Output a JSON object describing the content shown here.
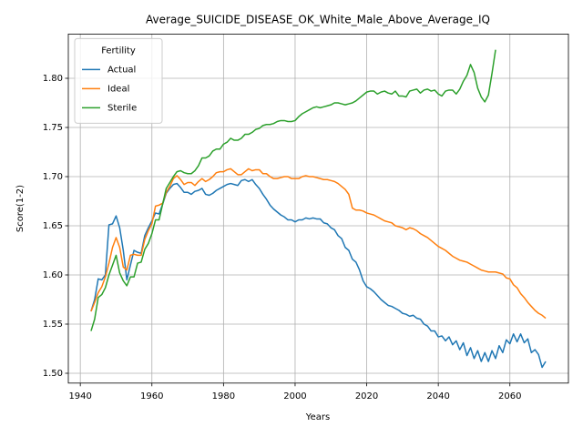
{
  "chart_data": {
    "type": "line",
    "title": "Average_SUICIDE_DISEASE_OK_White_Male_Above_Average_IQ",
    "x_label": "Years",
    "y_label": "Score(1-2)",
    "legend_title": "Fertility",
    "legend_position": "upper left",
    "grid": true,
    "xlim": [
      1936.65,
      2076.35
    ],
    "xticks": [
      1940,
      1960,
      1980,
      2000,
      2020,
      2040,
      2060
    ],
    "ylim": [
      1.49,
      1.845
    ],
    "yticks": [
      {
        "value": 1.5,
        "label": "1.50"
      },
      1.55,
      {
        "value": 1.6,
        "label": "1.60"
      },
      1.65,
      {
        "value": 1.7,
        "label": "1.70"
      },
      1.75,
      {
        "value": 1.8,
        "label": "1.80"
      }
    ],
    "x": [
      1943,
      1944,
      1945,
      1946,
      1947,
      1948,
      1949,
      1950,
      1951,
      1952,
      1953,
      1954,
      1955,
      1956,
      1957,
      1958,
      1959,
      1960,
      1961,
      1962,
      1963,
      1964,
      1965,
      1966,
      1967,
      1968,
      1969,
      1970,
      1971,
      1972,
      1973,
      1974,
      1975,
      1976,
      1977,
      1978,
      1979,
      1980,
      1981,
      1982,
      1983,
      1984,
      1985,
      1986,
      1987,
      1988,
      1989,
      1990,
      1991,
      1992,
      1993,
      1994,
      1995,
      1996,
      1997,
      1998,
      1999,
      2000,
      2001,
      2002,
      2003,
      2004,
      2005,
      2006,
      2007,
      2008,
      2009,
      2010,
      2011,
      2012,
      2013,
      2014,
      2015,
      2016,
      2017,
      2018,
      2019,
      2020,
      2021,
      2022,
      2023,
      2024,
      2025,
      2026,
      2027,
      2028,
      2029,
      2030,
      2031,
      2032,
      2033,
      2034,
      2035,
      2036,
      2037,
      2038,
      2039,
      2040,
      2041,
      2042,
      2043,
      2044,
      2045,
      2046,
      2047,
      2048,
      2049,
      2050,
      2051,
      2052,
      2053,
      2054,
      2055,
      2056,
      2057,
      2058,
      2059,
      2060,
      2061,
      2062,
      2063,
      2064,
      2065,
      2066,
      2067,
      2068,
      2069,
      2070
    ],
    "series": [
      {
        "name": "Actual",
        "color": "#1f77b4",
        "values": [
          1.563,
          1.575,
          1.596,
          1.595,
          1.6,
          1.651,
          1.652,
          1.66,
          1.648,
          1.625,
          1.595,
          1.61,
          1.625,
          1.623,
          1.622,
          1.64,
          1.648,
          1.655,
          1.663,
          1.662,
          1.672,
          1.683,
          1.688,
          1.692,
          1.693,
          1.689,
          1.684,
          1.684,
          1.682,
          1.685,
          1.686,
          1.688,
          1.682,
          1.681,
          1.683,
          1.686,
          1.688,
          1.69,
          1.692,
          1.693,
          1.692,
          1.691,
          1.696,
          1.697,
          1.695,
          1.697,
          1.692,
          1.688,
          1.682,
          1.677,
          1.671,
          1.667,
          1.664,
          1.661,
          1.659,
          1.656,
          1.656,
          1.654,
          1.656,
          1.656,
          1.658,
          1.657,
          1.658,
          1.657,
          1.657,
          1.653,
          1.652,
          1.648,
          1.646,
          1.64,
          1.637,
          1.628,
          1.625,
          1.616,
          1.613,
          1.605,
          1.594,
          1.588,
          1.586,
          1.583,
          1.579,
          1.575,
          1.572,
          1.569,
          1.568,
          1.566,
          1.564,
          1.561,
          1.56,
          1.558,
          1.559,
          1.556,
          1.555,
          1.55,
          1.548,
          1.543,
          1.543,
          1.537,
          1.538,
          1.533,
          1.537,
          1.529,
          1.533,
          1.524,
          1.531,
          1.518,
          1.526,
          1.515,
          1.523,
          1.512,
          1.521,
          1.512,
          1.523,
          1.515,
          1.528,
          1.521,
          1.534,
          1.53,
          1.54,
          1.532,
          1.54,
          1.531,
          1.535,
          1.521,
          1.524,
          1.519,
          1.506,
          1.512
        ]
      },
      {
        "name": "Ideal",
        "color": "#ff7f0e",
        "values": [
          1.563,
          1.572,
          1.582,
          1.588,
          1.598,
          1.612,
          1.628,
          1.638,
          1.628,
          1.608,
          1.605,
          1.62,
          1.621,
          1.62,
          1.62,
          1.636,
          1.645,
          1.652,
          1.67,
          1.671,
          1.673,
          1.684,
          1.69,
          1.698,
          1.701,
          1.697,
          1.692,
          1.694,
          1.694,
          1.691,
          1.695,
          1.698,
          1.695,
          1.697,
          1.7,
          1.704,
          1.705,
          1.705,
          1.707,
          1.708,
          1.705,
          1.702,
          1.702,
          1.705,
          1.708,
          1.706,
          1.707,
          1.707,
          1.703,
          1.703,
          1.7,
          1.698,
          1.698,
          1.699,
          1.7,
          1.7,
          1.698,
          1.698,
          1.698,
          1.7,
          1.701,
          1.7,
          1.7,
          1.699,
          1.698,
          1.697,
          1.697,
          1.696,
          1.695,
          1.693,
          1.69,
          1.687,
          1.682,
          1.668,
          1.666,
          1.666,
          1.665,
          1.663,
          1.662,
          1.661,
          1.659,
          1.657,
          1.655,
          1.654,
          1.653,
          1.65,
          1.649,
          1.648,
          1.646,
          1.648,
          1.647,
          1.645,
          1.642,
          1.64,
          1.638,
          1.635,
          1.632,
          1.629,
          1.627,
          1.625,
          1.622,
          1.619,
          1.617,
          1.615,
          1.614,
          1.613,
          1.611,
          1.609,
          1.607,
          1.605,
          1.604,
          1.603,
          1.603,
          1.603,
          1.602,
          1.601,
          1.597,
          1.596,
          1.59,
          1.587,
          1.581,
          1.577,
          1.572,
          1.568,
          1.564,
          1.561,
          1.559,
          1.556
        ]
      },
      {
        "name": "Sterile",
        "color": "#2ca02c",
        "values": [
          1.543,
          1.555,
          1.577,
          1.58,
          1.587,
          1.6,
          1.61,
          1.62,
          1.602,
          1.594,
          1.589,
          1.598,
          1.598,
          1.612,
          1.613,
          1.626,
          1.632,
          1.642,
          1.656,
          1.656,
          1.672,
          1.688,
          1.694,
          1.7,
          1.705,
          1.706,
          1.704,
          1.703,
          1.703,
          1.706,
          1.711,
          1.719,
          1.719,
          1.721,
          1.726,
          1.728,
          1.728,
          1.733,
          1.735,
          1.739,
          1.737,
          1.737,
          1.739,
          1.743,
          1.743,
          1.745,
          1.748,
          1.749,
          1.752,
          1.753,
          1.753,
          1.754,
          1.756,
          1.757,
          1.757,
          1.756,
          1.756,
          1.757,
          1.761,
          1.764,
          1.766,
          1.768,
          1.77,
          1.771,
          1.77,
          1.771,
          1.772,
          1.773,
          1.775,
          1.775,
          1.774,
          1.773,
          1.774,
          1.775,
          1.777,
          1.78,
          1.783,
          1.786,
          1.787,
          1.787,
          1.784,
          1.786,
          1.787,
          1.785,
          1.784,
          1.787,
          1.782,
          1.782,
          1.781,
          1.787,
          1.788,
          1.789,
          1.785,
          1.788,
          1.789,
          1.787,
          1.788,
          1.784,
          1.782,
          1.787,
          1.788,
          1.788,
          1.784,
          1.789,
          1.797,
          1.803,
          1.814,
          1.806,
          1.79,
          1.781,
          1.776,
          1.783,
          1.805,
          1.829,
          null,
          null,
          null,
          null,
          null,
          null,
          null,
          null,
          null,
          null,
          null,
          null,
          null,
          null
        ]
      }
    ]
  }
}
